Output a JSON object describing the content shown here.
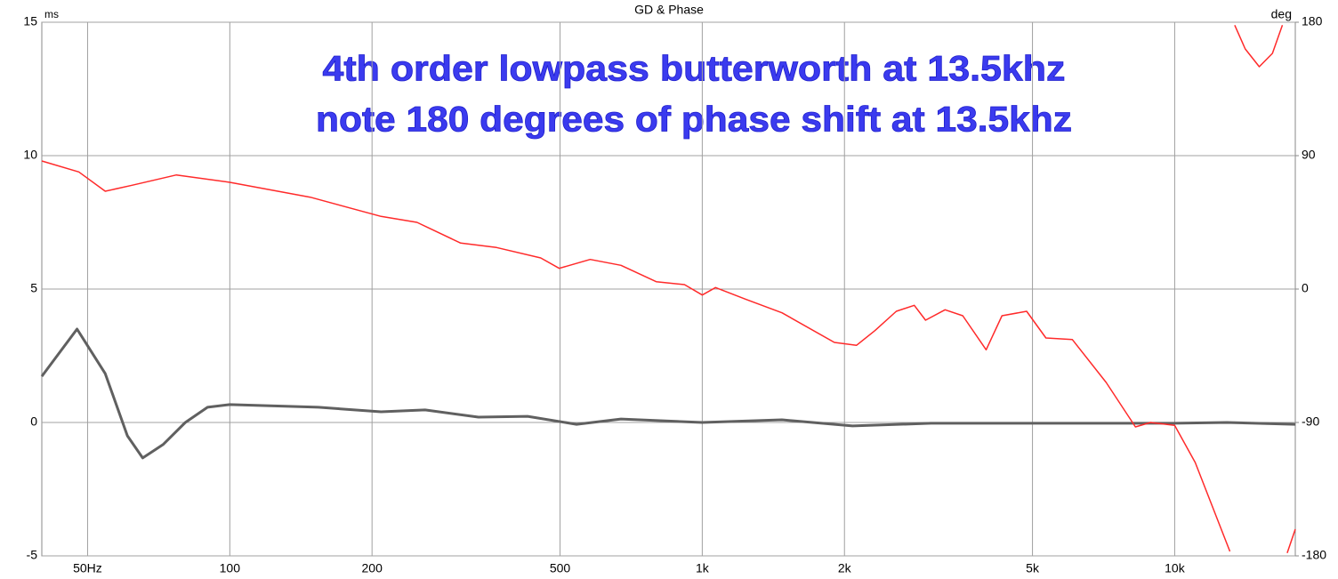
{
  "chart_data": {
    "type": "line",
    "title": "GD & Phase",
    "annotations": [
      "4th order lowpass butterworth at 13.5khz",
      "note 180 degrees of phase shift at 13.5khz"
    ],
    "y_label": "ms",
    "y2_label": "deg",
    "xscale": "log",
    "grid": true,
    "xlim": [
      40,
      18000
    ],
    "xticks": [
      {
        "value": 50,
        "label": "50Hz"
      },
      100,
      200,
      500,
      {
        "value": 1000,
        "label": "1k"
      },
      {
        "value": 2000,
        "label": "2k"
      },
      {
        "value": 5000,
        "label": "5k"
      },
      {
        "value": 10000,
        "label": "10k"
      }
    ],
    "ylim": [
      -5,
      15
    ],
    "yticks": [
      -5,
      0,
      5,
      10,
      15
    ],
    "y2lim": [
      -180,
      180
    ],
    "y2ticks": [
      -180,
      -90,
      0,
      90,
      180
    ],
    "series": [
      {
        "name": "GD",
        "color": "#606060",
        "x": [
          40,
          47.5,
          54.5,
          60.7,
          65.4,
          72.2,
          80.5,
          89.7,
          100,
          154,
          209,
          259,
          336,
          427,
          542,
          673,
          1000,
          1475,
          2080,
          3050,
          5800,
          10000,
          12900,
          18000
        ],
        "values": [
          1.73,
          3.5,
          1.83,
          -0.5,
          -1.33,
          -0.83,
          0,
          0.57,
          0.67,
          0.57,
          0.4,
          0.47,
          0.2,
          0.23,
          -0.07,
          0.13,
          0,
          0.1,
          -0.13,
          -0.03,
          -0.03,
          -0.03,
          0,
          -0.07
        ]
      },
      {
        "name": "Phase",
        "color": "#ff2a2a",
        "axis": "y2",
        "x": [
          40,
          47.9,
          54.5,
          62.1,
          77.1,
          100,
          148,
          209,
          249,
          308,
          367,
          455,
          498,
          579,
          673,
          799,
          917,
          1000,
          1067,
          1239,
          1475,
          1904,
          2120,
          2320,
          2575,
          2810,
          2970,
          3265,
          3560,
          3990,
          4310,
          4860,
          5340,
          6070,
          7160,
          8260,
          8890,
          10000,
          11050,
          13090,
          13095,
          13400,
          14100,
          15100,
          16100,
          16900,
          16950,
          17300,
          18000
        ],
        "values": [
          86.4,
          79,
          66,
          70,
          77,
          72,
          62,
          49,
          45,
          31,
          28,
          21,
          14,
          20,
          16,
          5,
          3,
          -4,
          1,
          -7,
          -16,
          -36,
          -38,
          -28,
          -15,
          -11,
          -21,
          -14,
          -18,
          -41,
          -18,
          -15,
          -33,
          -34,
          -63,
          -93,
          -90,
          -92,
          -117,
          -177,
          null,
          178,
          162,
          150,
          159,
          178,
          null,
          -178,
          -162
        ]
      }
    ]
  }
}
